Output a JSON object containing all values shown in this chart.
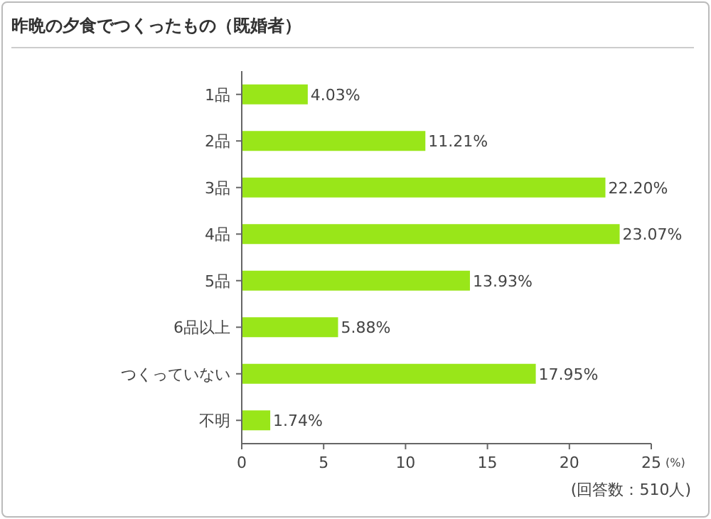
{
  "chart_data": {
    "type": "bar",
    "orientation": "horizontal",
    "title": "昨晩の夕食でつくったもの（既婚者）",
    "xlabel": "(%)",
    "categories": [
      "1品",
      "2品",
      "3品",
      "4品",
      "5品",
      "6品以上",
      "つくっていない",
      "不明"
    ],
    "values": [
      4.03,
      11.21,
      22.2,
      23.07,
      13.93,
      5.88,
      17.95,
      1.74
    ],
    "value_labels": [
      "4.03%",
      "11.21%",
      "22.20%",
      "23.07%",
      "13.93%",
      "5.88%",
      "17.95%",
      "1.74%"
    ],
    "color": "#99e619",
    "xlim": [
      0,
      25
    ],
    "xticks": [
      0,
      5,
      10,
      15,
      20,
      25
    ],
    "annotations": [
      "(回答数：510人)"
    ]
  }
}
